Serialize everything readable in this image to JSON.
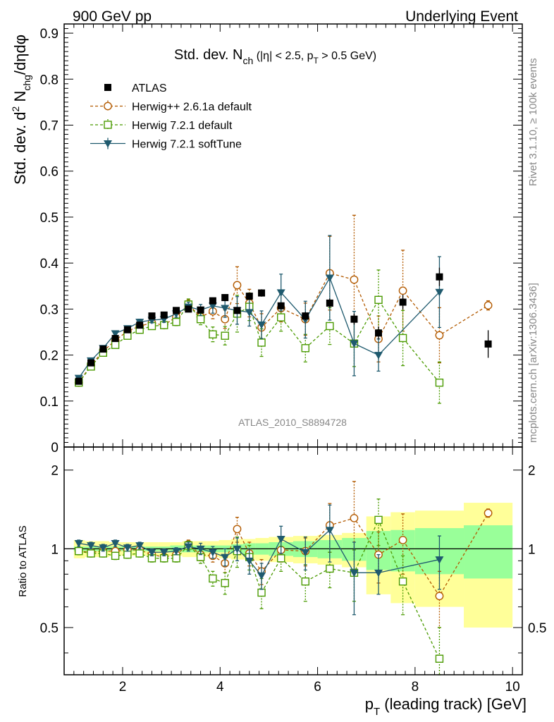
{
  "header": {
    "left": "900 GeV pp",
    "right": "Underlying Event",
    "side_top": "Rivet 3.1.10, ≥ 100k events",
    "side_bottom": "mcplots.cern.ch [arXiv:1306.3436]"
  },
  "chart_data": [
    {
      "type": "scatter",
      "panel": "main",
      "title_main": "Std. dev. N",
      "title_sub": "ch",
      "title_tail": " (|η| < 2.5, p",
      "title_sub2": "T",
      "title_tail2": " > 0.5 GeV)",
      "ylabel": "Std. dev. d² N_chg/dηdφ",
      "ylabel_parts": {
        "a": "Std. dev. d",
        "sup": "2",
        "b": " N",
        "sub": "chg",
        "c": "/dηdφ"
      },
      "watermark": "ATLAS_2010_S8894728",
      "xlim": [
        0.8,
        10.2
      ],
      "ylim": [
        0,
        0.92
      ],
      "yticks": [
        0,
        0.1,
        0.2,
        0.3,
        0.4,
        0.5,
        0.6,
        0.7,
        0.8,
        0.9
      ],
      "ytick_labels": [
        "0",
        "0.1",
        "0.2",
        "0.3",
        "0.4",
        "0.5",
        "0.6",
        "0.7",
        "0.8",
        "0.9"
      ],
      "legend": [
        {
          "name": "ATLAS",
          "color": "#000000",
          "marker": "square-filled"
        },
        {
          "name": "Herwig++ 2.6.1a default",
          "color": "#b35a00",
          "marker": "circle-open"
        },
        {
          "name": "Herwig 7.2.1 default",
          "color": "#4a9a00",
          "marker": "square-open"
        },
        {
          "name": "Herwig 7.2.1 softTune",
          "color": "#1f5a6e",
          "marker": "triangle-down"
        }
      ],
      "series": [
        {
          "name": "ATLAS",
          "x": [
            1.1,
            1.35,
            1.6,
            1.85,
            2.1,
            2.35,
            2.6,
            2.85,
            3.1,
            3.35,
            3.6,
            3.85,
            4.1,
            4.35,
            4.6,
            4.85,
            5.25,
            5.75,
            6.25,
            6.75,
            7.25,
            7.75,
            8.5,
            9.5
          ],
          "y": [
            0.143,
            0.183,
            0.213,
            0.236,
            0.255,
            0.265,
            0.285,
            0.287,
            0.297,
            0.3,
            0.298,
            0.318,
            0.325,
            0.297,
            0.328,
            0.335,
            0.307,
            0.285,
            0.313,
            0.278,
            0.248,
            0.315,
            0.37,
            0.224
          ],
          "err": [
            0.003,
            0.003,
            0.003,
            0.003,
            0.004,
            0.004,
            0.004,
            0.004,
            0.005,
            0.005,
            0.005,
            0.006,
            0.006,
            0.007,
            0.007,
            0.008,
            0.008,
            0.009,
            0.01,
            0.012,
            0.014,
            0.016,
            0.02,
            0.03
          ]
        },
        {
          "name": "Herwig++ 2.6.1a default",
          "x": [
            1.1,
            1.35,
            1.6,
            1.85,
            2.1,
            2.35,
            2.6,
            2.85,
            3.1,
            3.35,
            3.6,
            3.85,
            4.1,
            4.35,
            4.6,
            4.85,
            5.25,
            5.75,
            6.25,
            6.75,
            7.25,
            7.75,
            8.5,
            9.5
          ],
          "y": [
            0.14,
            0.178,
            0.208,
            0.232,
            0.252,
            0.263,
            0.27,
            0.265,
            0.283,
            0.31,
            0.283,
            0.295,
            0.278,
            0.352,
            0.313,
            0.26,
            0.302,
            0.278,
            0.378,
            0.364,
            0.235,
            0.34,
            0.243,
            0.308
          ],
          "err": [
            0.004,
            0.004,
            0.004,
            0.005,
            0.005,
            0.006,
            0.006,
            0.007,
            0.008,
            0.01,
            0.012,
            0.016,
            0.02,
            0.04,
            0.03,
            0.03,
            0.03,
            0.035,
            0.08,
            0.14,
            0.05,
            0.088,
            0.06,
            0.01
          ]
        },
        {
          "name": "Herwig 7.2.1 default",
          "x": [
            1.1,
            1.35,
            1.6,
            1.85,
            2.1,
            2.35,
            2.6,
            2.85,
            3.1,
            3.35,
            3.6,
            3.85,
            4.1,
            4.35,
            4.6,
            4.85,
            5.25,
            5.75,
            6.25,
            6.75,
            7.25,
            7.75,
            8.5
          ],
          "y": [
            0.14,
            0.175,
            0.205,
            0.222,
            0.242,
            0.255,
            0.263,
            0.265,
            0.272,
            0.31,
            0.278,
            0.245,
            0.242,
            0.29,
            0.305,
            0.227,
            0.282,
            0.215,
            0.263,
            0.225,
            0.32,
            0.237,
            0.14
          ],
          "err": [
            0.004,
            0.004,
            0.004,
            0.005,
            0.005,
            0.006,
            0.006,
            0.007,
            0.008,
            0.012,
            0.012,
            0.016,
            0.02,
            0.04,
            0.03,
            0.03,
            0.03,
            0.03,
            0.04,
            0.05,
            0.065,
            0.06,
            0.045
          ]
        },
        {
          "name": "Herwig 7.2.1 softTune",
          "x": [
            1.1,
            1.35,
            1.6,
            1.85,
            2.1,
            2.35,
            2.6,
            2.85,
            3.1,
            3.35,
            3.6,
            3.85,
            4.1,
            4.35,
            4.6,
            4.85,
            5.25,
            5.75,
            6.25,
            6.75,
            7.25,
            8.5
          ],
          "y": [
            0.15,
            0.188,
            0.215,
            0.247,
            0.258,
            0.272,
            0.276,
            0.278,
            0.29,
            0.305,
            0.298,
            0.307,
            0.302,
            0.297,
            0.293,
            0.266,
            0.336,
            0.277,
            0.368,
            0.225,
            0.2,
            0.337
          ],
          "err": [
            0.004,
            0.004,
            0.004,
            0.005,
            0.005,
            0.006,
            0.006,
            0.007,
            0.008,
            0.01,
            0.012,
            0.016,
            0.02,
            0.03,
            0.03,
            0.03,
            0.04,
            0.04,
            0.092,
            0.07,
            0.035,
            0.077
          ]
        }
      ]
    },
    {
      "type": "scatter",
      "panel": "ratio",
      "ylabel": "Ratio to ATLAS",
      "xlabel": "p_T (leading track) [GeV]",
      "xlabel_parts": {
        "a": "p",
        "sub": "T",
        "b": " (leading track) [GeV]"
      },
      "xlim": [
        0.8,
        10.2
      ],
      "ylim": [
        0.33,
        2.45
      ],
      "yscale": "log",
      "yticks": [
        0.5,
        1,
        2
      ],
      "ytick_labels": [
        "0.5",
        "1",
        "2"
      ],
      "xticks": [
        2,
        4,
        6,
        8,
        10
      ],
      "xtick_labels": [
        "2",
        "4",
        "6",
        "8",
        "10"
      ],
      "bands": {
        "edges": [
          1.0,
          1.225,
          1.475,
          1.725,
          1.975,
          2.225,
          2.475,
          2.725,
          2.975,
          3.225,
          3.475,
          3.725,
          3.975,
          4.225,
          4.475,
          4.725,
          5.0,
          5.5,
          6.0,
          6.5,
          7.0,
          7.5,
          8.0,
          9.0,
          10.0
        ],
        "yellow_half": [
          0.08,
          0.07,
          0.07,
          0.06,
          0.06,
          0.06,
          0.06,
          0.06,
          0.06,
          0.07,
          0.07,
          0.07,
          0.08,
          0.09,
          0.09,
          0.1,
          0.11,
          0.12,
          0.13,
          0.15,
          0.33,
          0.38,
          0.4,
          0.5
        ],
        "green_half": [
          0.02,
          0.02,
          0.02,
          0.02,
          0.02,
          0.02,
          0.02,
          0.02,
          0.03,
          0.03,
          0.03,
          0.03,
          0.03,
          0.04,
          0.05,
          0.05,
          0.06,
          0.07,
          0.08,
          0.1,
          0.17,
          0.18,
          0.2,
          0.23
        ]
      },
      "series": [
        {
          "name": "Herwig++ 2.6.1a default",
          "x": [
            1.1,
            1.35,
            1.6,
            1.85,
            2.1,
            2.35,
            2.6,
            2.85,
            3.1,
            3.35,
            3.6,
            3.85,
            4.1,
            4.35,
            4.6,
            4.85,
            5.25,
            5.75,
            6.25,
            6.75,
            7.25,
            7.75,
            8.5,
            9.5
          ],
          "y": [
            0.98,
            0.97,
            0.98,
            0.98,
            0.99,
            0.99,
            0.95,
            0.93,
            0.95,
            1.04,
            0.95,
            0.94,
            0.88,
            1.19,
            0.96,
            0.82,
            0.99,
            0.98,
            1.23,
            1.31,
            0.95,
            1.08,
            0.66,
            1.37
          ],
          "err": [
            0.03,
            0.03,
            0.03,
            0.03,
            0.03,
            0.03,
            0.03,
            0.03,
            0.03,
            0.04,
            0.05,
            0.05,
            0.07,
            0.13,
            0.1,
            0.09,
            0.1,
            0.12,
            0.26,
            0.5,
            0.21,
            0.28,
            0.16,
            0.05
          ]
        },
        {
          "name": "Herwig 7.2.1 default",
          "x": [
            1.1,
            1.35,
            1.6,
            1.85,
            2.1,
            2.35,
            2.6,
            2.85,
            3.1,
            3.35,
            3.6,
            3.85,
            4.1,
            4.35,
            4.6,
            4.85,
            5.25,
            5.75,
            6.25,
            6.75,
            7.25,
            7.75,
            8.5
          ],
          "y": [
            0.98,
            0.96,
            0.96,
            0.94,
            0.95,
            0.96,
            0.92,
            0.92,
            0.92,
            1.03,
            0.93,
            0.77,
            0.74,
            0.98,
            0.93,
            0.68,
            0.92,
            0.75,
            0.84,
            0.81,
            1.29,
            0.75,
            0.38
          ],
          "err": [
            0.03,
            0.03,
            0.03,
            0.03,
            0.03,
            0.03,
            0.03,
            0.03,
            0.03,
            0.04,
            0.05,
            0.05,
            0.07,
            0.13,
            0.1,
            0.09,
            0.1,
            0.12,
            0.13,
            0.18,
            0.26,
            0.19,
            0.12
          ]
        },
        {
          "name": "Herwig 7.2.1 softTune",
          "x": [
            1.1,
            1.35,
            1.6,
            1.85,
            2.1,
            2.35,
            2.6,
            2.85,
            3.1,
            3.35,
            3.6,
            3.85,
            4.1,
            4.35,
            4.6,
            4.85,
            5.25,
            5.75,
            6.25,
            6.75,
            7.25,
            8.5
          ],
          "y": [
            1.05,
            1.03,
            1.01,
            1.05,
            1.01,
            1.03,
            0.97,
            0.97,
            0.98,
            1.02,
            1.0,
            0.97,
            0.93,
            1.0,
            0.9,
            0.79,
            1.09,
            0.97,
            1.18,
            0.81,
            0.81,
            0.91
          ],
          "err": [
            0.03,
            0.03,
            0.03,
            0.03,
            0.03,
            0.03,
            0.03,
            0.03,
            0.03,
            0.04,
            0.05,
            0.05,
            0.07,
            0.1,
            0.1,
            0.09,
            0.13,
            0.14,
            0.29,
            0.25,
            0.14,
            0.21
          ]
        }
      ]
    }
  ]
}
